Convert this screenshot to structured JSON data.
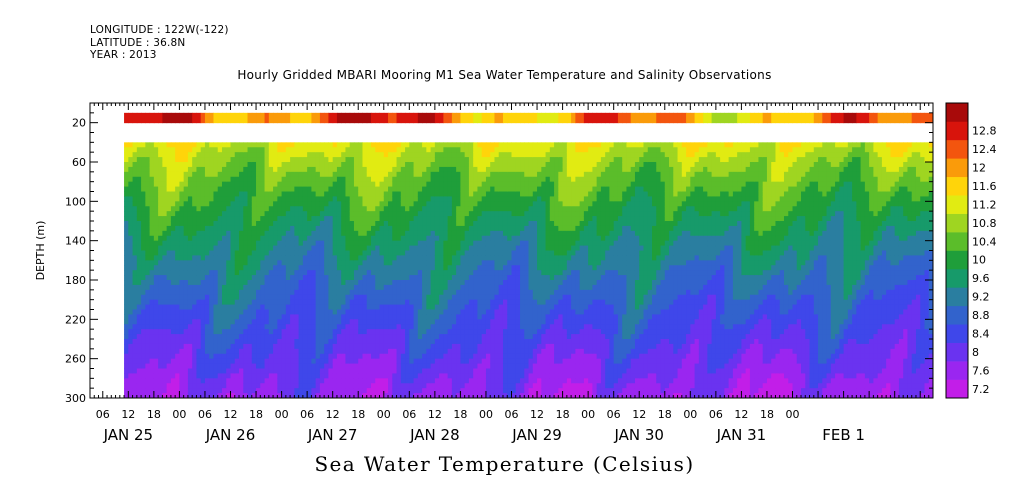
{
  "header": {
    "longitude": "LONGITUDE : 122W(-122)",
    "latitude": "LATITUDE : 36.8N",
    "year": "YEAR : 2013"
  },
  "chart_data": {
    "type": "heatmap",
    "title": "Hourly Gridded MBARI Mooring M1 Sea Water Temperature and Salinity Observations",
    "caption": "Sea Water Temperature (Celsius)",
    "ylabel": "DEPTH (m)",
    "ylim": [
      300,
      0
    ],
    "y_axis_inverted": true,
    "y_ticks": [
      20,
      60,
      100,
      140,
      180,
      220,
      260,
      300
    ],
    "x_hour_ticks": [
      "06",
      "12",
      "18",
      "00",
      "06",
      "12",
      "18",
      "00",
      "06",
      "12",
      "18",
      "00",
      "06",
      "12",
      "18",
      "00",
      "06",
      "12",
      "18",
      "00",
      "06",
      "12",
      "18",
      "00",
      "06",
      "12",
      "18",
      "00"
    ],
    "x_day_labels": [
      "JAN 25",
      "JAN 26",
      "JAN 27",
      "JAN 28",
      "JAN 29",
      "JAN 30",
      "JAN 31",
      "FEB  1"
    ],
    "colorbar": {
      "levels": [
        7.2,
        7.6,
        8,
        8.4,
        8.8,
        9.2,
        9.6,
        10,
        10.4,
        10.8,
        11.2,
        11.6,
        12,
        12.4,
        12.8
      ],
      "colors": [
        "#c21ee8",
        "#9a26f0",
        "#6a33f0",
        "#3f47ea",
        "#3263cc",
        "#2a7ea0",
        "#179a6a",
        "#1f9e3a",
        "#5bbd2a",
        "#9fd521",
        "#e1eb12",
        "#ffd40a",
        "#fa9b0a",
        "#f3550e",
        "#d8140c",
        "#a80a0a"
      ]
    },
    "grid": false,
    "gap_depth_range_m": [
      10,
      40
    ],
    "no_data_before": "JAN 25 ~11:00"
  }
}
